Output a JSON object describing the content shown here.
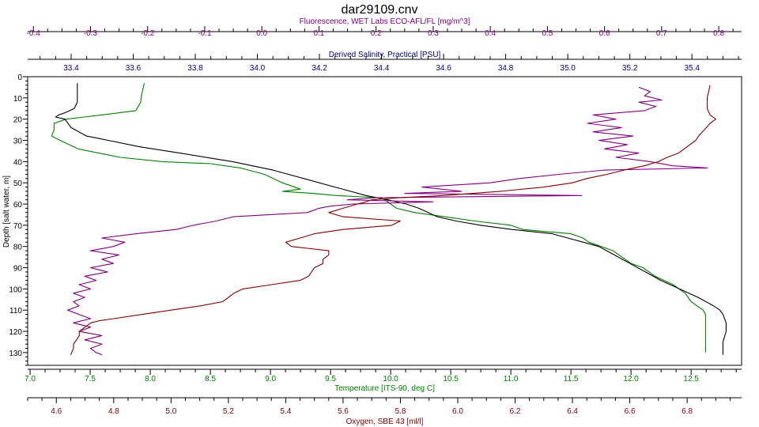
{
  "chart_data": {
    "type": "line",
    "title": "dar29109.cnv",
    "grid": false,
    "legend": "none",
    "y_axis": {
      "label": "Depth [salt water, m]",
      "range": [
        0,
        136
      ],
      "ticks": [
        0,
        10,
        20,
        30,
        40,
        50,
        60,
        70,
        80,
        90,
        100,
        110,
        120,
        130
      ],
      "inverted": true
    },
    "x_axes": [
      {
        "id": "fluorescence",
        "position": "top-outer",
        "label": "Fluorescence, WET Labs ECO-AFL/FL [mg/m^3]",
        "color": "#800080",
        "range": [
          -0.41,
          0.84
        ],
        "ticks": [
          -0.4,
          -0.3,
          -0.2,
          -0.1,
          0.0,
          0.1,
          0.2,
          0.3,
          0.4,
          0.5,
          0.6,
          0.7,
          0.8
        ],
        "tick_labels": [
          "-0.4",
          "-0.3",
          "-0.2",
          "-0.1",
          "0.0",
          "0.1",
          "0.2",
          "0.3",
          "0.4",
          "0.5",
          "0.6",
          "0.7",
          "0.8"
        ]
      },
      {
        "id": "salinity",
        "position": "top-inner",
        "label": "Derived Salinity, Practical [PSU]",
        "color": "#000080",
        "range": [
          33.26,
          35.56
        ],
        "ticks": [
          33.4,
          33.6,
          33.8,
          34.0,
          34.2,
          34.4,
          34.6,
          34.8,
          35.0,
          35.2,
          35.4
        ],
        "tick_labels": [
          "33.4",
          "33.6",
          "33.8",
          "34.0",
          "34.2",
          "34.4",
          "34.6",
          "34.8",
          "35.0",
          "35.2",
          "35.4"
        ]
      },
      {
        "id": "temperature",
        "position": "bottom-inner",
        "label": "Temperature [ITS-90, deg C]",
        "color": "#008000",
        "range": [
          6.98,
          12.92
        ],
        "ticks": [
          7.0,
          7.5,
          8.0,
          8.5,
          9.0,
          9.5,
          10.0,
          10.5,
          11.0,
          11.5,
          12.0,
          12.5
        ],
        "tick_labels": [
          "7.0",
          "7.5",
          "8.0",
          "8.5",
          "9.0",
          "9.5",
          "10.0",
          "10.5",
          "11.0",
          "11.5",
          "12.0",
          "12.5"
        ]
      },
      {
        "id": "oxygen",
        "position": "bottom-outer",
        "label": "Oxygen, SBE 43 [ml/l]",
        "color": "#800000",
        "range": [
          4.5,
          6.99
        ],
        "ticks": [
          4.6,
          4.8,
          5.0,
          5.2,
          5.4,
          5.6,
          5.8,
          6.0,
          6.2,
          6.4,
          6.6,
          6.8
        ],
        "tick_labels": [
          "4.6",
          "4.8",
          "5.0",
          "5.2",
          "5.4",
          "5.6",
          "5.8",
          "6.0",
          "6.2",
          "6.4",
          "6.6",
          "6.8"
        ]
      }
    ],
    "series": [
      {
        "axis": "temperature",
        "color": "#008000",
        "depth": [
          3,
          8,
          12,
          16,
          18,
          19,
          20,
          22,
          25,
          28,
          30,
          34,
          38,
          40,
          41,
          43,
          46,
          50,
          53,
          54,
          55,
          56,
          57,
          58,
          60,
          62,
          64,
          66,
          68,
          70,
          72,
          73,
          74,
          76,
          78,
          80,
          82,
          84,
          86,
          88,
          90,
          94,
          98,
          102,
          106,
          108,
          110,
          112,
          116,
          120,
          125,
          130
        ],
        "values": [
          7.95,
          7.93,
          7.92,
          7.88,
          7.6,
          7.45,
          7.3,
          7.2,
          7.2,
          7.18,
          7.25,
          7.4,
          7.75,
          8.1,
          8.5,
          8.75,
          8.95,
          9.1,
          9.25,
          9.1,
          9.35,
          9.55,
          9.9,
          9.95,
          10.0,
          10.05,
          10.2,
          10.45,
          10.7,
          11.0,
          11.1,
          11.3,
          11.5,
          11.6,
          11.65,
          11.75,
          11.85,
          11.9,
          11.95,
          12.0,
          12.1,
          12.2,
          12.35,
          12.45,
          12.5,
          12.55,
          12.6,
          12.62,
          12.62,
          12.62,
          12.62,
          12.62
        ]
      },
      {
        "axis": "salinity",
        "color": "#000000",
        "depth": [
          3,
          8,
          12,
          15,
          17,
          18,
          19,
          20,
          24,
          28,
          30,
          33,
          36,
          40,
          44,
          48,
          52,
          54,
          56,
          58,
          60,
          62,
          64,
          66,
          68,
          70,
          72,
          74,
          76,
          78,
          80,
          84,
          88,
          92,
          96,
          100,
          104,
          108,
          110,
          112,
          116,
          120,
          125,
          131
        ],
        "values": [
          33.42,
          33.42,
          33.42,
          33.41,
          33.38,
          33.36,
          33.35,
          33.38,
          33.4,
          33.45,
          33.52,
          33.62,
          33.75,
          33.92,
          34.05,
          34.15,
          34.25,
          34.3,
          34.35,
          34.42,
          34.48,
          34.52,
          34.55,
          34.58,
          34.64,
          34.72,
          34.82,
          34.95,
          35.0,
          35.05,
          35.1,
          35.15,
          35.2,
          35.25,
          35.3,
          35.36,
          35.42,
          35.47,
          35.49,
          35.5,
          35.51,
          35.51,
          35.5,
          35.5
        ]
      },
      {
        "axis": "fluorescence",
        "color": "#800080",
        "depth": [
          5,
          7,
          9,
          11,
          12,
          14,
          16,
          18,
          20,
          22,
          24,
          26,
          28,
          30,
          32,
          34,
          36,
          38,
          40,
          42,
          43,
          44,
          46,
          48,
          50,
          52,
          54,
          55,
          56,
          57,
          58,
          59,
          60,
          61,
          62,
          64,
          66,
          68,
          70,
          72,
          74,
          76,
          78,
          80,
          82,
          84,
          86,
          88,
          90,
          92,
          94,
          96,
          98,
          100,
          102,
          104,
          106,
          108,
          110,
          112,
          114,
          116,
          118,
          120,
          122,
          124,
          126,
          128,
          130,
          131
        ],
        "values": [
          0.66,
          0.68,
          0.67,
          0.7,
          0.66,
          0.69,
          0.67,
          0.58,
          0.62,
          0.57,
          0.63,
          0.58,
          0.65,
          0.59,
          0.64,
          0.6,
          0.66,
          0.62,
          0.68,
          0.72,
          0.78,
          0.6,
          0.52,
          0.45,
          0.4,
          0.28,
          0.35,
          0.25,
          0.56,
          0.2,
          0.15,
          0.3,
          0.16,
          0.12,
          0.1,
          0.08,
          -0.05,
          -0.08,
          -0.12,
          -0.15,
          -0.22,
          -0.28,
          -0.24,
          -0.26,
          -0.3,
          -0.25,
          -0.28,
          -0.26,
          -0.3,
          -0.27,
          -0.31,
          -0.29,
          -0.32,
          -0.3,
          -0.33,
          -0.31,
          -0.33,
          -0.32,
          -0.34,
          -0.32,
          -0.3,
          -0.33,
          -0.3,
          -0.32,
          -0.28,
          -0.31,
          -0.28,
          -0.3,
          -0.29,
          -0.28
        ]
      },
      {
        "axis": "oxygen",
        "color": "#800000",
        "depth": [
          4,
          10,
          15,
          18,
          20,
          22,
          25,
          28,
          30,
          33,
          36,
          38,
          40,
          42,
          44,
          46,
          48,
          50,
          52,
          54,
          56,
          57,
          58,
          59,
          60,
          62,
          64,
          66,
          68,
          70,
          72,
          74,
          76,
          78,
          80,
          82,
          84,
          86,
          88,
          90,
          92,
          94,
          96,
          98,
          100,
          102,
          104,
          106,
          108,
          110,
          112,
          114,
          115,
          116,
          118,
          120,
          122,
          124,
          126,
          128,
          131
        ],
        "values": [
          6.88,
          6.87,
          6.87,
          6.88,
          6.9,
          6.88,
          6.86,
          6.84,
          6.83,
          6.8,
          6.77,
          6.73,
          6.7,
          6.65,
          6.58,
          6.52,
          6.45,
          6.4,
          6.3,
          6.15,
          5.95,
          5.8,
          5.7,
          5.68,
          5.65,
          5.6,
          5.55,
          5.6,
          5.8,
          5.77,
          5.6,
          5.5,
          5.45,
          5.4,
          5.42,
          5.55,
          5.55,
          5.53,
          5.53,
          5.5,
          5.49,
          5.48,
          5.45,
          5.35,
          5.25,
          5.22,
          5.2,
          5.18,
          5.1,
          5.0,
          4.9,
          4.8,
          4.75,
          4.72,
          4.7,
          4.68,
          4.68,
          4.67,
          4.66,
          4.66,
          4.65
        ]
      }
    ]
  }
}
